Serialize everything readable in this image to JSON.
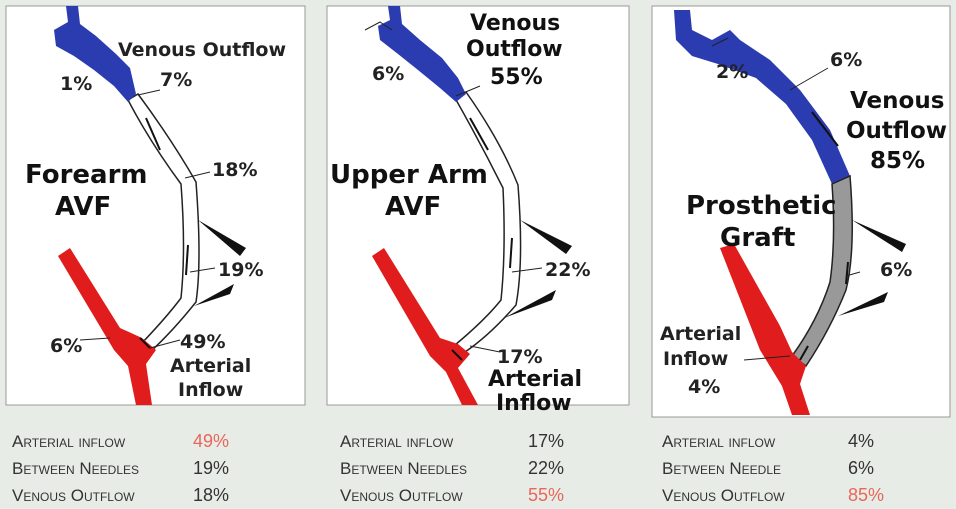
{
  "panels": [
    {
      "title": [
        "Forearm",
        "AVF"
      ],
      "labels": [
        "Venous Outflow",
        "1%",
        "7%",
        "18%",
        "19%",
        "6%",
        "49%",
        "Arterial",
        "Inflow"
      ],
      "table": [
        [
          "Arterial inflow",
          "49%"
        ],
        [
          "Between Needles",
          "19%"
        ],
        [
          "Venous Outflow",
          "18%"
        ]
      ],
      "highlight_row": 0
    },
    {
      "title": [
        "Upper Arm",
        "AVF"
      ],
      "labels": [
        "Venous",
        "Outflow",
        "55%",
        "6%",
        "22%",
        "17%",
        "Arterial",
        "Inflow"
      ],
      "table": [
        [
          "Arterial inflow",
          "17%"
        ],
        [
          "Between Needles",
          "22%"
        ],
        [
          "Venous Outflow",
          "55%"
        ]
      ],
      "highlight_row": 2
    },
    {
      "title": [
        "Prosthetic",
        "Graft"
      ],
      "labels": [
        "2%",
        "6%",
        "Venous",
        "Outflow",
        "85%",
        "6%",
        "Arterial",
        "Inflow",
        "4%"
      ],
      "table": [
        [
          "Arterial inflow",
          "4%"
        ],
        [
          "Between Needle",
          "6%"
        ],
        [
          "Venous Outflow",
          "85%"
        ]
      ],
      "highlight_row": 2
    }
  ]
}
